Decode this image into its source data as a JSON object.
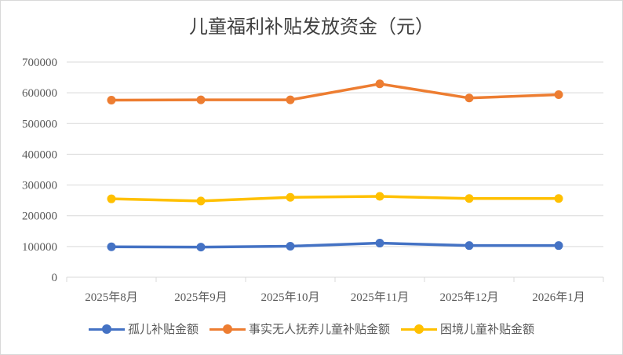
{
  "chart_data": {
    "type": "line",
    "title": "儿童福利补贴发放资金（元）",
    "categories": [
      "2025年8月",
      "2025年9月",
      "2025年10月",
      "2025年11月",
      "2025年12月",
      "2026年1月"
    ],
    "ylim": [
      0,
      700000
    ],
    "yticks": [
      "0",
      "100000",
      "200000",
      "300000",
      "400000",
      "500000",
      "600000",
      "700000"
    ],
    "grid": true,
    "legend_position": "bottom",
    "series": [
      {
        "name": "孤儿补贴金额",
        "color": "#4472c4",
        "values": [
          99000,
          98000,
          101000,
          111000,
          103000,
          103000
        ]
      },
      {
        "name": "事实无人抚养儿童补贴金额",
        "color": "#ed7d31",
        "values": [
          576000,
          577000,
          577000,
          629000,
          583000,
          594000
        ]
      },
      {
        "name": "困境儿童补贴金额",
        "color": "#ffc000",
        "values": [
          255000,
          248000,
          260000,
          263000,
          256000,
          256000
        ]
      }
    ]
  }
}
